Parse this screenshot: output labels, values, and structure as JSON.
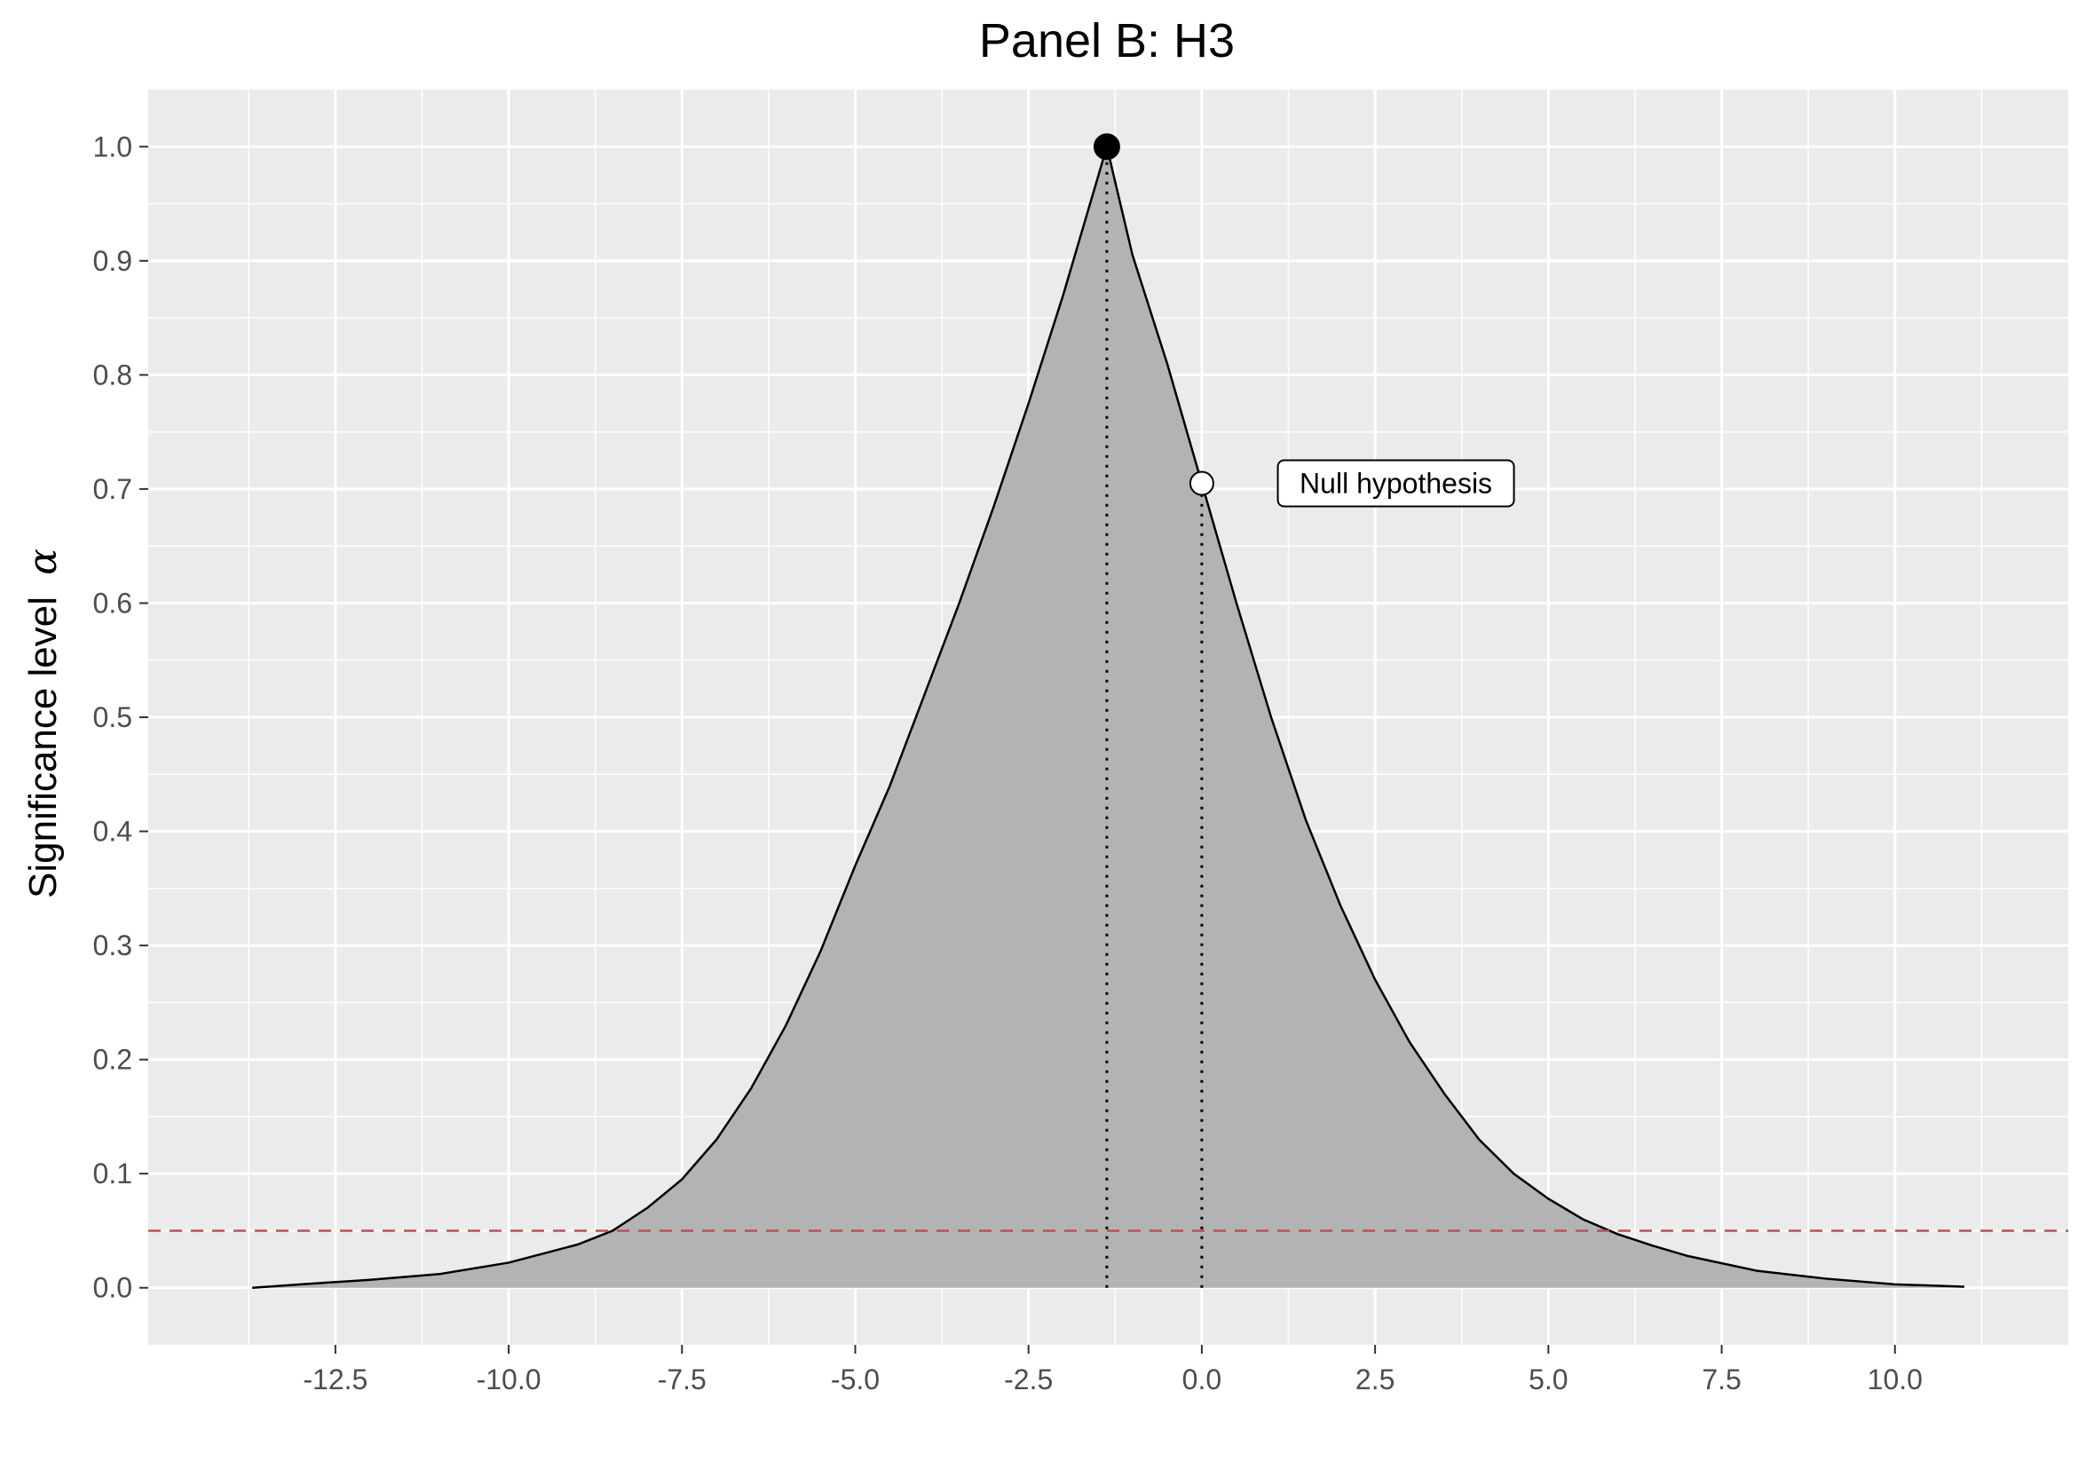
{
  "chart_data": {
    "type": "area",
    "title": "Panel B: H3",
    "xlabel": "",
    "ylabel": "Significance level",
    "ylabel_symbol": "α",
    "xlim": [
      -15.2,
      12.5
    ],
    "ylim": [
      -0.05,
      1.05
    ],
    "x_ticks": [
      -12.5,
      -10.0,
      -7.5,
      -5.0,
      -2.5,
      0.0,
      2.5,
      5.0,
      7.5,
      10.0
    ],
    "x_tick_labels": [
      "-12.5",
      "-10.0",
      "-7.5",
      "-5.0",
      "-2.5",
      "0.0",
      "2.5",
      "5.0",
      "7.5",
      "10.0"
    ],
    "y_ticks": [
      0.0,
      0.1,
      0.2,
      0.3,
      0.4,
      0.5,
      0.6,
      0.7,
      0.8,
      0.9,
      1.0
    ],
    "y_tick_labels": [
      "0.0",
      "0.1",
      "0.2",
      "0.3",
      "0.4",
      "0.5",
      "0.6",
      "0.7",
      "0.8",
      "0.9",
      "1.0"
    ],
    "grid": true,
    "series": [
      {
        "x": [
          -13.7,
          -13.0,
          -12.0,
          -11.0,
          -10.0,
          -9.0,
          -8.5,
          -8.0,
          -7.5,
          -7.0,
          -6.5,
          -6.0,
          -5.5,
          -5.0,
          -4.5,
          -4.0,
          -3.5,
          -3.0,
          -2.5,
          -2.0,
          -1.37,
          -1.0,
          -0.5,
          0.0,
          0.5,
          1.0,
          1.5,
          2.0,
          2.5,
          3.0,
          3.5,
          4.0,
          4.5,
          5.0,
          5.5,
          6.0,
          6.5,
          7.0,
          8.0,
          9.0,
          10.0,
          11.0
        ],
        "y": [
          0.0,
          0.003,
          0.007,
          0.012,
          0.022,
          0.038,
          0.05,
          0.07,
          0.095,
          0.13,
          0.175,
          0.23,
          0.295,
          0.37,
          0.44,
          0.52,
          0.6,
          0.685,
          0.775,
          0.87,
          1.0,
          0.905,
          0.81,
          0.705,
          0.6,
          0.5,
          0.41,
          0.335,
          0.27,
          0.215,
          0.17,
          0.13,
          0.1,
          0.078,
          0.06,
          0.047,
          0.037,
          0.028,
          0.015,
          0.008,
          0.003,
          0.001
        ]
      }
    ],
    "max_point": {
      "x": -1.37,
      "y": 1.0
    },
    "null_point": {
      "x": 0.0,
      "y": 0.705
    },
    "reference_line_y": 0.05,
    "annotation": {
      "text": "Null hypothesis",
      "x": 2.8,
      "y": 0.705
    },
    "colors": {
      "panel_bg": "#EBEBEB",
      "grid": "#FFFFFF",
      "area_fill": "#B3B3B3",
      "curve": "#000000",
      "reference_line": "#C0504D",
      "max_point": "#000000",
      "null_point": "#FFFFFF"
    }
  }
}
